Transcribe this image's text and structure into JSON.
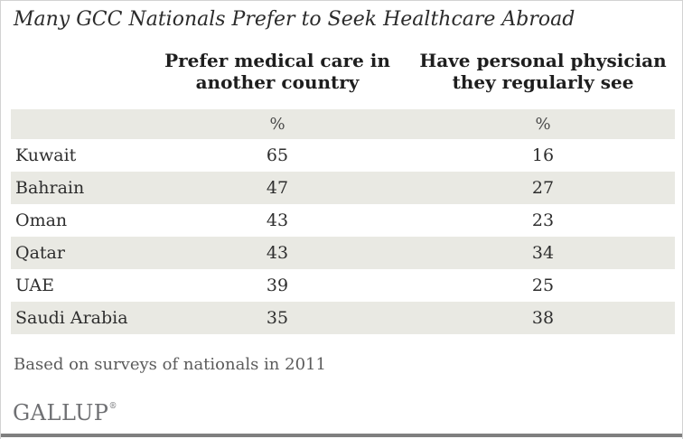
{
  "chart_data": {
    "type": "table",
    "title": "Many GCC Nationals Prefer to Seek Healthcare Abroad",
    "categories": [
      "Kuwait",
      "Bahrain",
      "Oman",
      "Qatar",
      "UAE",
      "Saudi Arabia"
    ],
    "series": [
      {
        "name": "Prefer medical care in another country",
        "unit": "%",
        "values": [
          65,
          47,
          43,
          43,
          39,
          35
        ]
      },
      {
        "name": "Have personal physician they regularly see",
        "unit": "%",
        "values": [
          16,
          27,
          23,
          34,
          25,
          38
        ]
      }
    ],
    "footnote": "Based on surveys of nationals in 2011",
    "source_logo": "GALLUP"
  },
  "title": "Many GCC Nationals Prefer to Seek Healthcare Abroad",
  "table": {
    "col1_header_line1": "Prefer medical care in",
    "col1_header_line2": "another country",
    "col2_header_line1": "Have personal physician",
    "col2_header_line2": "they regularly see",
    "col1_unit": "%",
    "col2_unit": "%",
    "rows": [
      {
        "country": "Kuwait",
        "col1": "65",
        "col2": "16"
      },
      {
        "country": "Bahrain",
        "col1": "47",
        "col2": "27"
      },
      {
        "country": "Oman",
        "col1": "43",
        "col2": "23"
      },
      {
        "country": "Qatar",
        "col1": "43",
        "col2": "34"
      },
      {
        "country": "UAE",
        "col1": "39",
        "col2": "25"
      },
      {
        "country": "Saudi Arabia",
        "col1": "35",
        "col2": "38"
      }
    ]
  },
  "footnote": "Based on surveys of nationals in 2011",
  "brand": {
    "name": "GALLUP",
    "registered_mark": "®"
  },
  "colors": {
    "row_shade": "#e9e9e3",
    "border": "#d2d2d2",
    "bottom_bar": "#7f7f7f",
    "logo_gray": "#6f7073"
  }
}
